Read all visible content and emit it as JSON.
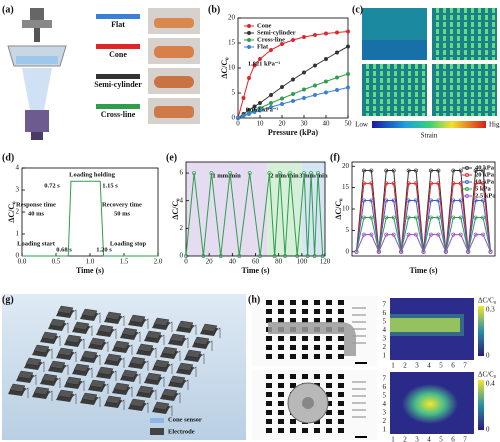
{
  "panel_labels": [
    "(a)",
    "(b)",
    "(c)",
    "(d)",
    "(e)",
    "(f)",
    "(g)",
    "(h)"
  ],
  "panels": {
    "a": {
      "structures": [
        {
          "label": "Flat",
          "color": "#3b7fd6"
        },
        {
          "label": "Cone",
          "color": "#e0252a"
        },
        {
          "label": "Semi-cylinder",
          "color": "#333333"
        },
        {
          "label": "Cross-line",
          "color": "#2e9e4a"
        }
      ]
    },
    "c": {
      "colorbar": {
        "low": "Low",
        "high": "Hight",
        "title": "Strain"
      }
    },
    "g": {
      "legend": [
        "Cone sensor",
        "Electrode"
      ]
    },
    "h": {
      "axis_ticks": [
        "1",
        "2",
        "3",
        "4",
        "5",
        "6",
        "7"
      ],
      "maps": [
        {
          "title": "ΔC/C₀",
          "max": "0.3",
          "min": "0"
        },
        {
          "title": "ΔC/C₀",
          "max": "0.4",
          "min": "0"
        }
      ]
    }
  },
  "chart_data": [
    {
      "type": "line",
      "markers": true,
      "x": [
        0,
        2.5,
        5,
        7.5,
        10,
        15,
        20,
        25,
        30,
        35,
        40,
        45,
        50
      ],
      "series": [
        {
          "name": "Cone",
          "color": "#e0252a",
          "values": [
            0,
            4,
            8,
            10.5,
            11.8,
            13.6,
            14.8,
            15.6,
            16.2,
            16.6,
            16.9,
            17.1,
            17.3
          ]
        },
        {
          "name": "Semi-cylinder",
          "color": "#333333",
          "values": [
            0,
            0.8,
            1.6,
            2.3,
            3.0,
            4.6,
            6.2,
            7.7,
            9.1,
            10.5,
            11.8,
            13.1,
            14.3
          ]
        },
        {
          "name": "Cross-line",
          "color": "#2e9e4a",
          "values": [
            0,
            0.5,
            1,
            1.5,
            2,
            3,
            3.9,
            4.8,
            5.7,
            6.5,
            7.3,
            8.1,
            8.8
          ]
        },
        {
          "name": "Flat",
          "color": "#3b7fd6",
          "values": [
            0,
            0.4,
            0.8,
            1.2,
            1.5,
            2.2,
            2.8,
            3.4,
            4,
            4.6,
            5.1,
            5.6,
            6.1
          ]
        }
      ],
      "xlim": [
        0,
        50
      ],
      "xticks": [
        0,
        10,
        20,
        30,
        40,
        50
      ],
      "ylim": [
        0,
        20
      ],
      "yticks": [
        0,
        5,
        10,
        15,
        20
      ],
      "xlabel": "Pressure (kPa)",
      "ylabel": "ΔC/C₀",
      "legend": "upper left",
      "annotations": [
        {
          "text": "1.821 kPa⁻¹",
          "color": "#e0252a"
        },
        {
          "text": "0.162 kPa⁻¹",
          "color": "#3b7fd6"
        }
      ]
    },
    {
      "type": "line",
      "markers": false,
      "x": [
        0,
        0.68,
        0.72,
        1.15,
        1.2,
        2
      ],
      "series": [
        {
          "name": null,
          "color": "#2e9e4a",
          "values": [
            0,
            0,
            3.4,
            3.4,
            0,
            0
          ]
        }
      ],
      "xlim": [
        0,
        2
      ],
      "xticks": [
        {
          "value": 0,
          "label": "0.0"
        },
        0.5,
        {
          "value": 1,
          "label": "1.0"
        },
        1.5,
        {
          "value": 2,
          "label": "2.0"
        }
      ],
      "ylim": [
        0,
        4
      ],
      "yticks": [
        0,
        1,
        2,
        3,
        4
      ],
      "xlabel": "Time (s)",
      "ylabel": "ΔC/C₀",
      "annotations": [
        {
          "text": "Loading holding"
        },
        {
          "text": "0.72 s"
        },
        {
          "text": "1.15 s"
        },
        {
          "text": "Response time"
        },
        {
          "text": "40 ms"
        },
        {
          "text": "Recovery time"
        },
        {
          "text": "50 ms"
        },
        {
          "text": "Loading start"
        },
        {
          "text": "Loading stop"
        },
        {
          "text": "0.68 s"
        },
        {
          "text": "1.20 s"
        }
      ]
    },
    {
      "type": "line",
      "markers": true,
      "x": [
        0,
        7,
        15,
        22,
        30,
        38,
        46,
        55,
        64,
        72,
        76.5,
        81,
        85.5,
        90,
        96,
        102,
        105,
        108,
        111,
        114,
        118
      ],
      "series": [
        {
          "name": null,
          "color": "#2e9e4a",
          "values": [
            0,
            6,
            0,
            6,
            0,
            6,
            0,
            6,
            0,
            6,
            0,
            6,
            0,
            6,
            0,
            6,
            0,
            6,
            0,
            6,
            0
          ]
        }
      ],
      "regions": [
        {
          "label": "1 mm/min",
          "from": 0,
          "to": 70,
          "color": "#e6dcf2"
        },
        {
          "label": "2 mm/min",
          "from": 70,
          "to": 100,
          "color": "#d6efd9"
        },
        {
          "label": "3 mm/min",
          "from": 100,
          "to": 120,
          "color": "#d7e4f5"
        }
      ],
      "xlim": [
        0,
        120
      ],
      "xticks": [
        0,
        20,
        40,
        60,
        80,
        100,
        120
      ],
      "ylim": [
        0,
        6.8
      ],
      "yticks": [
        0,
        2,
        4,
        6
      ],
      "xlabel": "Time (s)",
      "ylabel": "ΔC/C₀"
    },
    {
      "type": "line",
      "markers": true,
      "x": [
        0,
        0.5,
        1,
        1.5,
        2,
        2.5,
        3,
        3.5,
        4,
        4.5,
        5,
        5.5,
        6,
        6.5,
        7,
        7.5,
        8,
        8.5,
        9
      ],
      "series": [
        {
          "name": "40 kPa",
          "color": "#333333",
          "values": [
            0,
            19,
            19,
            0,
            19,
            19,
            0,
            19,
            19,
            0,
            19,
            19,
            0,
            19,
            19,
            0,
            19,
            19,
            0
          ]
        },
        {
          "name": "20 kPa",
          "color": "#e0252a",
          "values": [
            0,
            16,
            16,
            0,
            16,
            16,
            0,
            16,
            16,
            0,
            16,
            16,
            0,
            16,
            16,
            0,
            16,
            16,
            0
          ]
        },
        {
          "name": "10 kPa",
          "color": "#3b5bd6",
          "values": [
            0,
            12,
            12,
            0,
            12,
            12,
            0,
            12,
            12,
            0,
            12,
            12,
            0,
            12,
            12,
            0,
            12,
            12,
            0
          ]
        },
        {
          "name": "5 kPa",
          "color": "#2e9e4a",
          "values": [
            0,
            8,
            8,
            0,
            8,
            8,
            0,
            8,
            8,
            0,
            8,
            8,
            0,
            8,
            8,
            0,
            8,
            8,
            0
          ]
        },
        {
          "name": "2.5 kPa",
          "color": "#9b4fc4",
          "values": [
            0,
            4,
            4,
            0,
            4,
            4,
            0,
            4,
            4,
            0,
            4,
            4,
            0,
            4,
            4,
            0,
            4,
            4,
            0
          ]
        }
      ],
      "xlim": [
        -0.3,
        9.3
      ],
      "ylim": [
        -1,
        21
      ],
      "yticks": [
        0,
        5,
        10,
        15,
        20
      ],
      "xlabel": "Time (s)",
      "ylabel": "ΔC/C₀",
      "legend": "upper right"
    }
  ]
}
